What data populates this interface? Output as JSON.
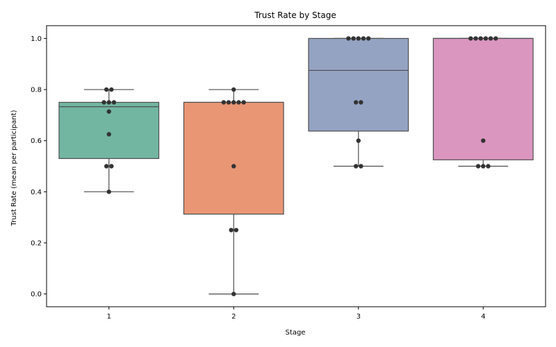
{
  "chart_data": {
    "type": "box",
    "title": "Trust Rate by Stage",
    "xlabel": "Stage",
    "ylabel": "Trust Rate (mean per participant)",
    "categories": [
      "1",
      "2",
      "3",
      "4"
    ],
    "ylim": [
      -0.05,
      1.05
    ],
    "yticks": [
      "0.0",
      "0.2",
      "0.4",
      "0.6",
      "0.8",
      "1.0"
    ],
    "grid": false,
    "box_colors": [
      "#72b6a1",
      "#e99675",
      "#95a3c3",
      "#db96c0"
    ],
    "boxes": [
      {
        "category": "1",
        "q1": 0.53,
        "median": 0.733,
        "q3": 0.75,
        "whisker_low": 0.4,
        "whisker_high": 0.8
      },
      {
        "category": "2",
        "q1": 0.3125,
        "median": 0.75,
        "q3": 0.75,
        "whisker_low": 0.0,
        "whisker_high": 0.8
      },
      {
        "category": "3",
        "q1": 0.6375,
        "median": 0.875,
        "q3": 1.0,
        "whisker_low": 0.5,
        "whisker_high": 1.0
      },
      {
        "category": "4",
        "q1": 0.525,
        "median": 1.0,
        "q3": 1.0,
        "whisker_low": 0.5,
        "whisker_high": 1.0
      }
    ],
    "points": [
      {
        "category": "1",
        "values": [
          0.8,
          0.8,
          0.75,
          0.75,
          0.75,
          0.714,
          0.625,
          0.5,
          0.5,
          0.4
        ]
      },
      {
        "category": "2",
        "values": [
          0.8,
          0.75,
          0.75,
          0.75,
          0.75,
          0.75,
          0.5,
          0.25,
          0.25,
          0.0
        ]
      },
      {
        "category": "3",
        "values": [
          1.0,
          1.0,
          1.0,
          1.0,
          1.0,
          0.75,
          0.75,
          0.6,
          0.5,
          0.5
        ]
      },
      {
        "category": "4",
        "values": [
          1.0,
          1.0,
          1.0,
          1.0,
          1.0,
          1.0,
          0.6,
          0.5,
          0.5,
          0.5
        ]
      }
    ]
  }
}
